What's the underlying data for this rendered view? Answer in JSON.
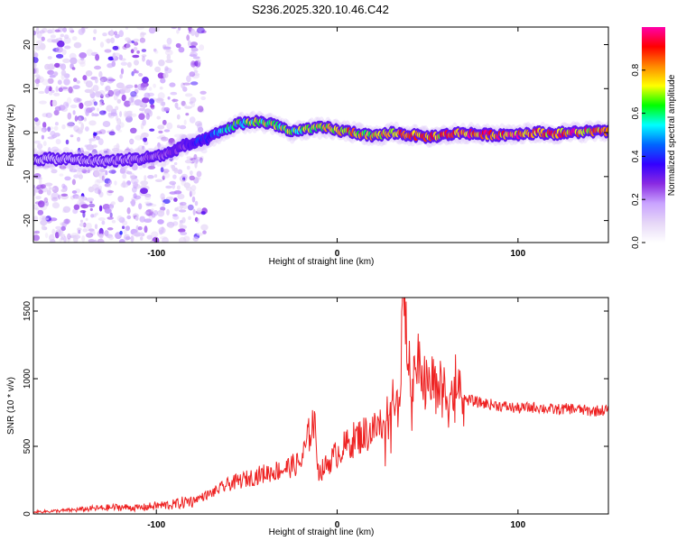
{
  "title": "S236.2025.320.10.46.C42",
  "chart_data": [
    {
      "type": "heatmap",
      "title": "S236.2025.320.10.46.C42",
      "xlabel": "Height of straight line (km)",
      "ylabel": "Frequency (Hz)",
      "xlim": [
        -168,
        150
      ],
      "ylim": [
        -25,
        24
      ],
      "xticks": [
        -100,
        0,
        100
      ],
      "yticks": [
        -20,
        -10,
        0,
        10,
        20
      ],
      "colorbar": {
        "label": "Normalized spectral amplitude",
        "range": [
          0,
          1
        ],
        "ticks": [
          "0.0",
          "0.2",
          "0.4",
          "0.6",
          "0.8"
        ],
        "colors": [
          "#ffffff",
          "#e6d7f7",
          "#c9a3ff",
          "#8a2be2",
          "#3300ff",
          "#0066ff",
          "#00ffff",
          "#00ff00",
          "#ffff00",
          "#ff8800",
          "#ff0000",
          "#ff00aa"
        ]
      },
      "ridge": {
        "height_km": [
          -168,
          -150,
          -130,
          -110,
          -95,
          -85,
          -75,
          -65,
          -55,
          -45,
          -35,
          -25,
          -15,
          -5,
          0,
          10,
          20,
          30,
          40,
          50,
          60,
          70,
          80,
          90,
          100,
          110,
          120,
          130,
          140,
          150
        ],
        "frequency_hz": [
          -6,
          -6,
          -6.5,
          -6,
          -5,
          -3,
          -2,
          0,
          2,
          2.5,
          2,
          0,
          1,
          1,
          0.5,
          0,
          -1,
          0,
          -0.5,
          -1,
          -0.5,
          0,
          -0.5,
          -0.5,
          -0.3,
          0,
          -0.2,
          0,
          0.3,
          0.2
        ],
        "amplitude": [
          0.15,
          0.2,
          0.22,
          0.25,
          0.3,
          0.35,
          0.45,
          0.55,
          0.7,
          0.75,
          0.8,
          0.75,
          0.8,
          0.85,
          0.85,
          0.9,
          0.85,
          0.9,
          0.95,
          0.9,
          0.95,
          1.0,
          1.0,
          1.0,
          1.0,
          1.0,
          0.95,
          1.0,
          0.95,
          1.0
        ]
      }
    },
    {
      "type": "line",
      "xlabel": "Height of straight line (km)",
      "ylabel": "SNR (10 * v/v)",
      "xlim": [
        -168,
        150
      ],
      "ylim": [
        0,
        1600
      ],
      "xticks": [
        -100,
        0,
        100
      ],
      "yticks": [
        0,
        500,
        1000,
        1500
      ],
      "color": "#ee2222",
      "series": [
        {
          "name": "SNR",
          "x": [
            -168,
            -150,
            -135,
            -120,
            -110,
            -100,
            -90,
            -80,
            -70,
            -60,
            -50,
            -40,
            -30,
            -20,
            -13,
            -10,
            0,
            10,
            20,
            28,
            32,
            35,
            36,
            40,
            45,
            50,
            55,
            60,
            65,
            70,
            80,
            90,
            100,
            110,
            120,
            130,
            140,
            150
          ],
          "y": [
            15,
            25,
            40,
            50,
            45,
            60,
            70,
            100,
            150,
            220,
            260,
            300,
            330,
            380,
            700,
            300,
            450,
            560,
            620,
            700,
            800,
            900,
            1580,
            950,
            1100,
            950,
            1000,
            900,
            900,
            850,
            820,
            800,
            780,
            790,
            770,
            780,
            760,
            770
          ]
        }
      ]
    }
  ]
}
